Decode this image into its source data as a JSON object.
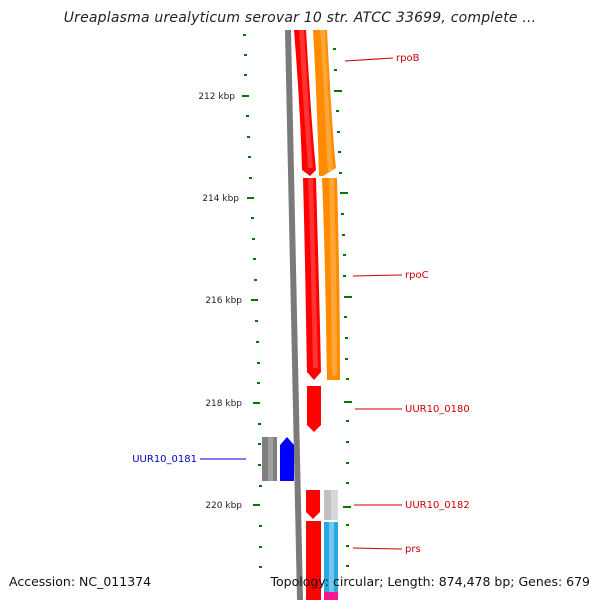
{
  "title": "Ureaplasma urealyticum serovar 10 str. ATCC 33699, complete ...",
  "footer": {
    "accession": "Accession: NC_011374",
    "summary": "Topology: circular; Length: 874,478 bp; Genes: 679"
  },
  "scale_labels": [
    "212 kbp",
    "214 kbp",
    "216 kbp",
    "218 kbp",
    "220 kbp"
  ],
  "gene_labels": [
    {
      "text": "rpoB",
      "color": "#cc0000",
      "side": "right"
    },
    {
      "text": "rpoC",
      "color": "#cc0000",
      "side": "right"
    },
    {
      "text": "UUR10_0180",
      "color": "#cc0000",
      "side": "right"
    },
    {
      "text": "UUR10_0181",
      "color": "#0000cc",
      "side": "left"
    },
    {
      "text": "UUR10_0182",
      "color": "#cc0000",
      "side": "right"
    },
    {
      "text": "prs",
      "color": "#cc0000",
      "side": "right"
    }
  ],
  "colors": {
    "backbone": "#7a7a7a",
    "gene_forward": "#ff0000",
    "gene_reverse": "#0000ff",
    "cds_orange": "#ff8c00",
    "grey_feature": "#808080",
    "light_grey_feature": "#c0c0c0",
    "cyan_feature": "#29a8e0",
    "magenta_feature": "#ff1493",
    "tick": "#007700"
  }
}
